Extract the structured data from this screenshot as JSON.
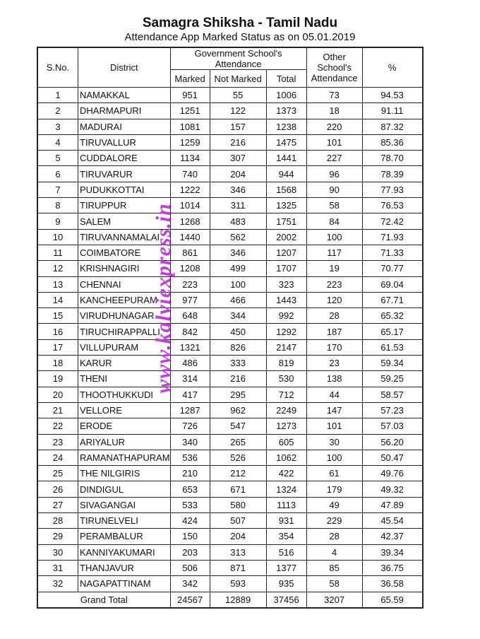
{
  "header": {
    "title": "Samagra Shiksha - Tamil Nadu",
    "subtitle": "Attendance App Marked Status as on 05.01.2019"
  },
  "table": {
    "columns": {
      "sno": "S.No.",
      "district": "District",
      "gov_group": "Government School's Attendance",
      "marked": "Marked",
      "not_marked": "Not Marked",
      "total": "Total",
      "other": "Other School's Attendance",
      "percent": "%"
    },
    "rows": [
      [
        "1",
        "NAMAKKAL",
        "951",
        "55",
        "1006",
        "73",
        "94.53"
      ],
      [
        "2",
        "DHARMAPURI",
        "1251",
        "122",
        "1373",
        "18",
        "91.11"
      ],
      [
        "3",
        "MADURAI",
        "1081",
        "157",
        "1238",
        "220",
        "87.32"
      ],
      [
        "4",
        "TIRUVALLUR",
        "1259",
        "216",
        "1475",
        "101",
        "85.36"
      ],
      [
        "5",
        "CUDDALORE",
        "1134",
        "307",
        "1441",
        "227",
        "78.70"
      ],
      [
        "6",
        "TIRUVARUR",
        "740",
        "204",
        "944",
        "96",
        "78.39"
      ],
      [
        "7",
        "PUDUKKOTTAI",
        "1222",
        "346",
        "1568",
        "90",
        "77.93"
      ],
      [
        "8",
        "TIRUPPUR",
        "1014",
        "311",
        "1325",
        "58",
        "76.53"
      ],
      [
        "9",
        "SALEM",
        "1268",
        "483",
        "1751",
        "84",
        "72.42"
      ],
      [
        "10",
        "TIRUVANNAMALAI",
        "1440",
        "562",
        "2002",
        "100",
        "71.93"
      ],
      [
        "11",
        "COIMBATORE",
        "861",
        "346",
        "1207",
        "117",
        "71.33"
      ],
      [
        "12",
        "KRISHNAGIRI",
        "1208",
        "499",
        "1707",
        "19",
        "70.77"
      ],
      [
        "13",
        "CHENNAI",
        "223",
        "100",
        "323",
        "223",
        "69.04"
      ],
      [
        "14",
        "KANCHEEPURAM",
        "977",
        "466",
        "1443",
        "120",
        "67.71"
      ],
      [
        "15",
        "VIRUDHUNAGAR",
        "648",
        "344",
        "992",
        "28",
        "65.32"
      ],
      [
        "16",
        "TIRUCHIRAPPALLI",
        "842",
        "450",
        "1292",
        "187",
        "65.17"
      ],
      [
        "17",
        "VILLUPURAM",
        "1321",
        "826",
        "2147",
        "170",
        "61.53"
      ],
      [
        "18",
        "KARUR",
        "486",
        "333",
        "819",
        "23",
        "59.34"
      ],
      [
        "19",
        "THENI",
        "314",
        "216",
        "530",
        "138",
        "59.25"
      ],
      [
        "20",
        "THOOTHUKKUDI",
        "417",
        "295",
        "712",
        "44",
        "58.57"
      ],
      [
        "21",
        "VELLORE",
        "1287",
        "962",
        "2249",
        "147",
        "57.23"
      ],
      [
        "22",
        "ERODE",
        "726",
        "547",
        "1273",
        "101",
        "57.03"
      ],
      [
        "23",
        "ARIYALUR",
        "340",
        "265",
        "605",
        "30",
        "56.20"
      ],
      [
        "24",
        "RAMANATHAPURAM",
        "536",
        "526",
        "1062",
        "100",
        "50.47"
      ],
      [
        "25",
        "THE NILGIRIS",
        "210",
        "212",
        "422",
        "61",
        "49.76"
      ],
      [
        "26",
        "DINDIGUL",
        "653",
        "671",
        "1324",
        "179",
        "49.32"
      ],
      [
        "27",
        "SIVAGANGAI",
        "533",
        "580",
        "1113",
        "49",
        "47.89"
      ],
      [
        "28",
        "TIRUNELVELI",
        "424",
        "507",
        "931",
        "229",
        "45.54"
      ],
      [
        "29",
        "PERAMBALUR",
        "150",
        "204",
        "354",
        "28",
        "42.37"
      ],
      [
        "30",
        "KANNIYAKUMARI",
        "203",
        "313",
        "516",
        "4",
        "39.34"
      ],
      [
        "31",
        "THANJAVUR",
        "506",
        "871",
        "1377",
        "85",
        "36.75"
      ],
      [
        "32",
        "NAGAPATTINAM",
        "342",
        "593",
        "935",
        "58",
        "36.58"
      ]
    ],
    "grand_total": {
      "label": "Grand Total",
      "marked": "24567",
      "not_marked": "12889",
      "total": "37456",
      "other": "3207",
      "percent": "65.59"
    }
  },
  "watermark": "www.kalviexpress.in"
}
